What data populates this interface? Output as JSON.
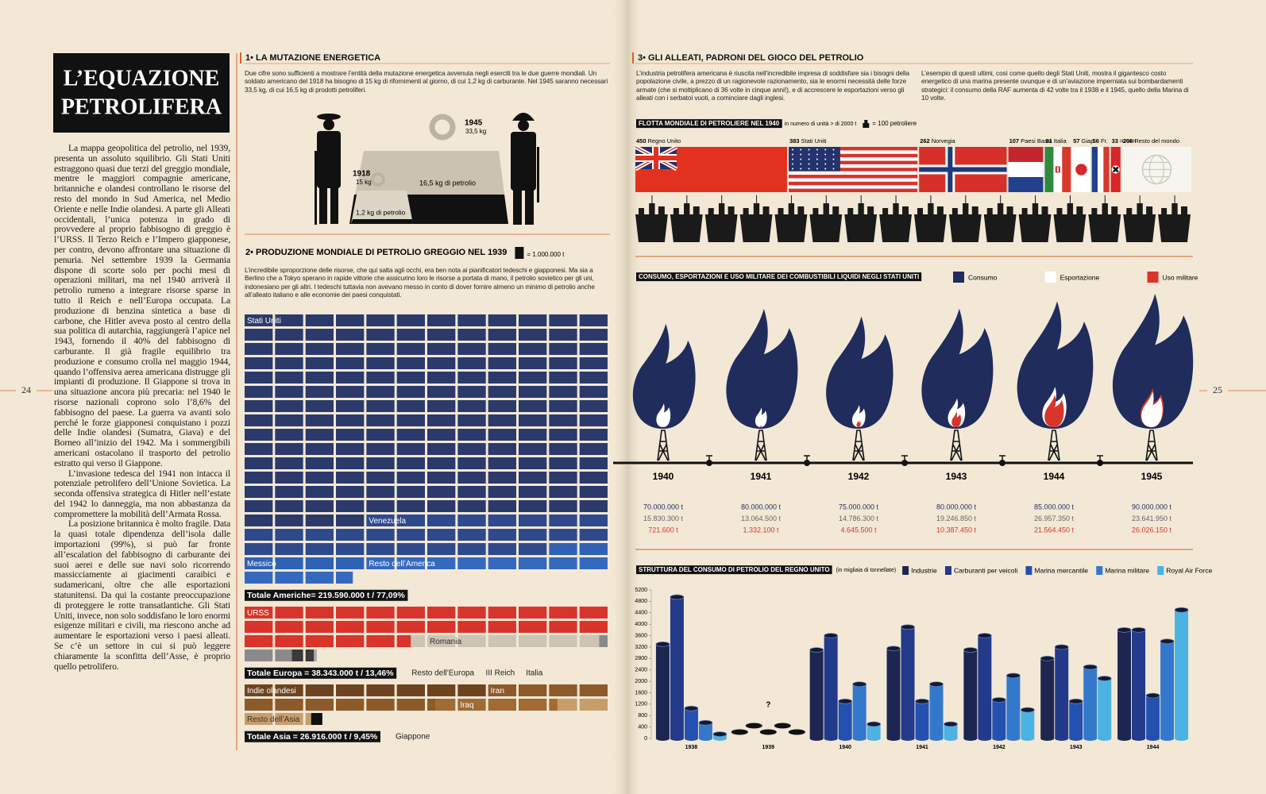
{
  "left_page": {
    "page_number": "24",
    "title": [
      "L’EQUAZIONE",
      "PETROLIFERA"
    ],
    "body": [
      "La mappa geopolitica del petrolio, nel 1939, presenta un assoluto squilibrio. Gli Stati Uniti estraggono quasi due terzi del greggio mondiale, mentre le maggiori compagnie americane, britanniche e olandesi controllano le risorse del resto del mondo in Sud America, nel Medio Oriente e nelle Indie olandesi. A parte gli Alleati occidentali, l’unica potenza in grado di provvedere al proprio fabbisogno di greggio è l’URSS. Il Terzo Reich e l’Impero giapponese, per contro, devono affrontare una situazione di penuria. Nel settembre 1939 la Germania dispone di scorte solo per pochi mesi di operazioni militari, ma nel 1940 arriverà il petrolio rumeno a integrare risorse sparse in tutto il Reich e nell’Europa occupata. La produzione di benzina sintetica a base di carbone, che Hitler aveva posto al centro della sua politica di autarchia, raggiungerà l’apice nel 1943, fornendo il 40% del fabbisogno di carburante. Il già fragile equilibrio tra produzione e consumo crolla nel maggio 1944, quando l’offensiva aerea americana distrugge gli impianti di produzione. Il Giappone si trova in una situazione ancora più precaria: nel 1940 le risorse nazionali coprono solo l’8,6% del fabbisogno del paese. La guerra va avanti solo perché le forze giapponesi conquistano i pozzi delle Indie olandesi (Sumatra, Giava) e del Borneo all’inizio del 1942. Ma i sommergibili americani ostacolano il trasporto del petrolio estratto qui verso il Giappone.",
      "L’invasione tedesca del 1941 non intacca il potenziale petrolifero dell’Unione Sovietica. La seconda offensiva strategica di Hitler nell’estate del 1942 lo danneggia, ma non abbastanza da compromettere la mobilità dell’Armata Rossa.",
      "La posizione britannica è molto fragile. Data la quasi totale dipendenza dell’isola dalle importazioni (99%), si può far fronte all’escalation del fabbisogno di carburante dei suoi aerei e delle sue navi solo ricorrendo massicciamente ai giacimenti caraibici e sudamericani, oltre che alle esportazioni statunitensi. Da qui la costante preoccupazione di proteggere le rotte transatlantiche. Gli Stati Uniti, invece, non solo soddisfano le loro enormi esigenze militari e civili, ma riescono anche ad aumentare le esportazioni verso i paesi alleati. Se c’è un settore in cui si può leggere chiaramente la sconfitta dell’Asse, è proprio quello petrolifero."
    ]
  },
  "right_page_number": "25",
  "section_1": {
    "heading": "1• LA MUTAZIONE ENERGETICA",
    "text": "Due cifre sono sufficienti a mostrare l’entità della mutazione energetica avvenuta negli eserciti tra le due guerre mondiali. Un soldato americano del 1918 ha bisogno di 15 kg di rifornimenti al giorno, di cui 1,2 kg di carburante. Nel 1945 saranno necessari 33,5 kg, di cui 16,5 kg di prodotti petroliferi.",
    "year_1945": "1945",
    "weight_1945": "33,5 kg",
    "year_1918": "1918",
    "weight_1918": "15 kg",
    "oil_1945": "16,5 kg di petrolio",
    "oil_1918": "1,2 kg di petrolio"
  },
  "section_3": {
    "heading": "3• GLI ALLEATI, PADRONI DEL GIOCO DEL PETROLIO",
    "text": [
      "L’industria petrolifera americana è riuscita nell’incredibile impresa di soddisfare sia i bisogni della popolazione civile, a prezzo di un ragionevole razionamento, sia le enormi necessità delle forze armate (che si moltiplicano di 36 volte in cinque anni!), e di accrescere le esportazioni verso gli alleati con i serbatoi vuoti, a cominciare dagli inglesi.",
      "L’esempio di questi ultimi, così come quello degli Stati Uniti, mostra il gigantesco costo energetico di una marina presente ovunque e di un’aviazione imperniata sui bombardamenti strategici: il consumo della RAF aumenta di 42 volte tra il 1938 e il 1945, quello della Marina di 10 volte."
    ]
  },
  "chart_data": [
    {
      "type": "waffle",
      "title": "2• PRODUZIONE MONDIALE DI PETROLIO GREGGIO NEL 1939",
      "unit_label": "= 1.000.000 t",
      "text": "L’incredibile sproporzione delle risorse, che qui salta agli occhi, era ben nota ai pianificatori tedeschi e giapponesi. Ma sia a Berlino che a Tokyo sperano in rapide vittorie che assicurino loro le risorse a portata di mano, il petrolio sovietico per gli uni, indonesiano per gli altri. I tedeschi tuttavia non avevano messo in conto di dover fornire almeno un minimo di petrolio anche all’alleato italiano e alle economie dei paesi conquistati.",
      "groups": [
        {
          "total_label": "Totale Americhe= 219.590.000 t  /  77,09%",
          "series": [
            {
              "name": "Stati Uniti",
              "color": "#2b3a6b",
              "value": 172
            },
            {
              "name": "Venezuela",
              "color": "#2e4a8c",
              "value": 30
            },
            {
              "name": "Messico",
              "color": "#2f62b5",
              "value": 6
            },
            {
              "name": "Resto dell’America",
              "color": "#3569bd",
              "value": 11.6
            }
          ]
        },
        {
          "total_label": "Totale Europa = 38.343.000 t / 13,46%",
          "series": [
            {
              "name": "URSS",
              "color": "#d9342b",
              "value": 29.5
            },
            {
              "name": "Romania",
              "color": "#cdc4b4",
              "value": 6.2
            },
            {
              "name": "Resto dell’Europa",
              "color": "#8a8a8a",
              "value": 1.9
            },
            {
              "name": "III Reich",
              "color": "#3a3a3a",
              "value": 0.7
            },
            {
              "name": "Italia",
              "color": "#a8a8a8",
              "value": 0.1
            }
          ]
        },
        {
          "total_label": "Totale Asia = 26.916.000 t / 9,45%",
          "series": [
            {
              "name": "Indie olandesi",
              "color": "#6e4420",
              "value": 8
            },
            {
              "name": "Iran",
              "color": "#8c5a2b",
              "value": 10.3
            },
            {
              "name": "Iraq",
              "color": "#a06b35",
              "value": 4
            },
            {
              "name": "Resto dell’Asia",
              "color": "#c79d6b",
              "value": 3.9
            },
            {
              "name": "Giappone",
              "color": "#111111",
              "value": 0.4
            }
          ]
        }
      ]
    },
    {
      "type": "flags",
      "title": "FLOTTA MONDIALE DI PETROLIERE NEL 1940",
      "subtitle": "in numero di unità > di 2000 t",
      "unit_label": "= 100 petroliere",
      "categories": [
        "Regno Unito",
        "Stati Uniti",
        "Norvegia",
        "Paesi Bassi",
        "Italia",
        "Giap.",
        "Fr.",
        "III Reich",
        "Resto del mondo"
      ],
      "values": [
        450,
        383,
        262,
        107,
        81,
        57,
        56,
        33,
        208
      ]
    },
    {
      "type": "flame",
      "title": "CONSUMO, ESPORTAZIONI E USO MILITARE DEI COMBUSTIBILI LIQUIDI NEGLI STATI UNITI",
      "categories": [
        "1940",
        "1941",
        "1942",
        "1943",
        "1944",
        "1945"
      ],
      "series": [
        {
          "name": "Consumo",
          "color": "#1f2c5c",
          "values": [
            70000000,
            80000000,
            75000000,
            80000000,
            85000000,
            90000000
          ],
          "value_labels": [
            "70.000.000 t",
            "80.000.000 t",
            "75.000.000 t",
            "80.000.000 t",
            "85.000.000 t",
            "90.000.000 t"
          ]
        },
        {
          "name": "Esportazione",
          "color": "#ffffff",
          "values": [
            15830300,
            13064500,
            14786300,
            19246850,
            26957350,
            23641950
          ],
          "value_labels": [
            "15.830.300 t",
            "13.064.500 t",
            "14.786.300 t",
            "19.246.850 t",
            "26.957.350 t",
            "23.641.950 t"
          ]
        },
        {
          "name": "Uso militare",
          "color": "#d9352a",
          "values": [
            721600,
            1332100,
            4645500,
            10387450,
            21564450,
            26026150
          ],
          "value_labels": [
            "721.600 t",
            "1.332.100 t",
            "4.645.500 t",
            "10.387.450 t",
            "21.564.450 t",
            "26.026.150 t"
          ]
        }
      ]
    },
    {
      "type": "cylinder",
      "title": "STRUTTURA DEL CONSUMO DI PETROLIO DEL REGNO UNITO",
      "subtitle": "(in migliaia di tonnellate)",
      "annotation": "?",
      "categories": [
        "1938",
        "1939",
        "1940",
        "1941",
        "1942",
        "1943",
        "1944"
      ],
      "ylim": [
        0,
        5200
      ],
      "yticks": [
        0,
        400,
        800,
        1200,
        1600,
        2000,
        2400,
        2800,
        3200,
        3600,
        4000,
        4400,
        4800,
        5200
      ],
      "series": [
        {
          "name": "Industrie",
          "color": "#1d2650",
          "values": [
            3300,
            null,
            3100,
            3150,
            3100,
            2800,
            3800
          ]
        },
        {
          "name": "Carburanti per veicoli",
          "color": "#233a8a",
          "values": [
            4950,
            null,
            3600,
            3900,
            3600,
            3200,
            3800
          ]
        },
        {
          "name": "Marina mercantile",
          "color": "#2450b0",
          "values": [
            1050,
            null,
            1300,
            1300,
            1350,
            1300,
            1500
          ]
        },
        {
          "name": "Marina militare",
          "color": "#3478cc",
          "values": [
            550,
            null,
            1900,
            1900,
            2200,
            2500,
            3400
          ]
        },
        {
          "name": "Royal Air Force",
          "color": "#4cb2e2",
          "values": [
            150,
            null,
            500,
            500,
            1000,
            2100,
            4500
          ]
        }
      ]
    }
  ]
}
